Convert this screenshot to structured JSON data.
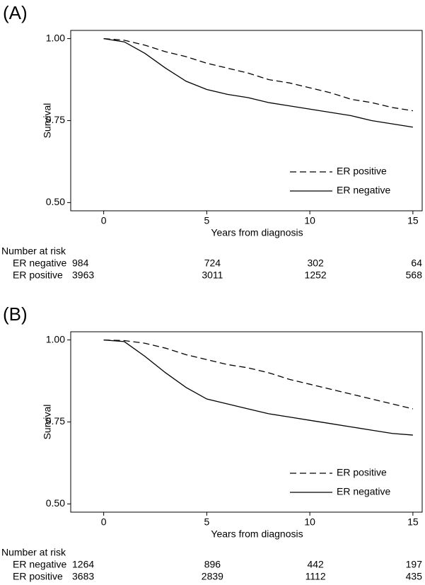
{
  "chart_data": [
    {
      "type": "line",
      "panel_label": "(A)",
      "xlabel": "Years from diagnosis",
      "ylabel": "Survival",
      "x": [
        0,
        1,
        2,
        3,
        4,
        5,
        6,
        7,
        8,
        9,
        10,
        11,
        12,
        13,
        14,
        15
      ],
      "xlim": [
        -1.6,
        15.45
      ],
      "xticks": [
        0,
        5,
        10,
        15
      ],
      "ylim": [
        0.475,
        1.025
      ],
      "yticks": [
        {
          "value": 1,
          "label": "1.00"
        },
        {
          "value": 0.75,
          "label": "0.75"
        },
        {
          "value": 0.5,
          "label": "0.50"
        }
      ],
      "legend": "lower right",
      "series": [
        {
          "name": "ER positive",
          "color": "#000000",
          "dashed": true,
          "values": [
            1,
            0.995,
            0.98,
            0.96,
            0.945,
            0.925,
            0.91,
            0.895,
            0.875,
            0.865,
            0.85,
            0.835,
            0.815,
            0.805,
            0.79,
            0.78
          ]
        },
        {
          "name": "ER negative",
          "color": "#000000",
          "dashed": false,
          "values": [
            1,
            0.99,
            0.955,
            0.91,
            0.87,
            0.845,
            0.83,
            0.82,
            0.805,
            0.795,
            0.785,
            0.775,
            0.765,
            0.75,
            0.74,
            0.73
          ]
        }
      ],
      "risk_table": {
        "title": "Number at risk",
        "rows": [
          {
            "name": "ER negative",
            "values": [
              984,
              724,
              302,
              64
            ]
          },
          {
            "name": "ER positive",
            "values": [
              3963,
              3011,
              1252,
              568
            ]
          }
        ]
      }
    },
    {
      "type": "line",
      "panel_label": "(B)",
      "xlabel": "Years from diagnosis",
      "ylabel": "Survival",
      "x": [
        0,
        1,
        2,
        3,
        4,
        5,
        6,
        7,
        8,
        9,
        10,
        11,
        12,
        13,
        14,
        15
      ],
      "xlim": [
        -1.6,
        15.45
      ],
      "xticks": [
        0,
        5,
        10,
        15
      ],
      "ylim": [
        0.475,
        1.025
      ],
      "yticks": [
        {
          "value": 1,
          "label": "1.00"
        },
        {
          "value": 0.75,
          "label": "0.75"
        },
        {
          "value": 0.5,
          "label": "0.50"
        }
      ],
      "legend": "lower right",
      "series": [
        {
          "name": "ER positive",
          "color": "#000000",
          "dashed": true,
          "values": [
            1,
            0.998,
            0.99,
            0.975,
            0.955,
            0.94,
            0.925,
            0.915,
            0.9,
            0.88,
            0.865,
            0.85,
            0.835,
            0.82,
            0.805,
            0.79
          ]
        },
        {
          "name": "ER negative",
          "color": "#000000",
          "dashed": false,
          "values": [
            1,
            0.995,
            0.95,
            0.9,
            0.855,
            0.82,
            0.805,
            0.79,
            0.775,
            0.765,
            0.755,
            0.745,
            0.735,
            0.725,
            0.715,
            0.71
          ]
        }
      ],
      "risk_table": {
        "title": "Number at risk",
        "rows": [
          {
            "name": "ER negative",
            "values": [
              1264,
              896,
              442,
              197
            ]
          },
          {
            "name": "ER positive",
            "values": [
              3683,
              2839,
              1112,
              435
            ]
          }
        ]
      }
    }
  ]
}
